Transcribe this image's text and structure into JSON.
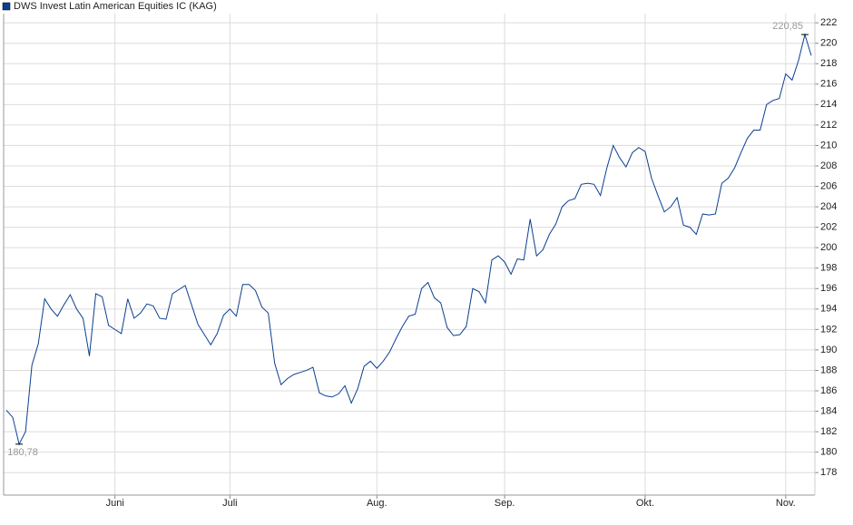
{
  "chart_data": {
    "type": "line",
    "categories": [
      null,
      null,
      null,
      null,
      null,
      null,
      null,
      null,
      null,
      null,
      null,
      null,
      null,
      null,
      null,
      null,
      null,
      "Juni",
      null,
      null,
      null,
      null,
      null,
      null,
      null,
      null,
      null,
      null,
      null,
      null,
      null,
      null,
      null,
      null,
      null,
      "Juli",
      null,
      null,
      null,
      null,
      null,
      null,
      null,
      null,
      null,
      null,
      null,
      null,
      null,
      null,
      null,
      null,
      null,
      null,
      null,
      null,
      null,
      null,
      "Aug.",
      null,
      null,
      null,
      null,
      null,
      null,
      null,
      null,
      null,
      null,
      null,
      null,
      null,
      null,
      null,
      null,
      null,
      null,
      null,
      "Sep.",
      null,
      null,
      null,
      null,
      null,
      null,
      null,
      null,
      null,
      null,
      null,
      null,
      null,
      null,
      null,
      null,
      null,
      null,
      null,
      null,
      null,
      "Okt.",
      null,
      null,
      null,
      null,
      null,
      null,
      null,
      null,
      null,
      null,
      null,
      null,
      null,
      null,
      null,
      null,
      null,
      null,
      null,
      null,
      null,
      "Nov.",
      null,
      null,
      null,
      null
    ],
    "series": [
      {
        "name": "DWS Invest Latin American Equities IC (KAG)",
        "color": "#0b3f91",
        "values": [
          184.1,
          183.4,
          180.78,
          182.0,
          188.5,
          190.6,
          195.0,
          194.0,
          193.3,
          194.4,
          195.4,
          194.0,
          193.1,
          189.4,
          195.5,
          195.2,
          192.4,
          192.0,
          191.6,
          195.0,
          193.1,
          193.6,
          194.5,
          194.3,
          193.1,
          193.0,
          195.5,
          195.9,
          196.3,
          194.4,
          192.5,
          191.5,
          190.5,
          191.6,
          193.4,
          194.0,
          193.3,
          196.4,
          196.4,
          195.8,
          194.2,
          193.6,
          188.7,
          186.6,
          187.2,
          187.6,
          187.8,
          188.0,
          188.3,
          185.8,
          185.5,
          185.4,
          185.7,
          186.5,
          184.8,
          186.2,
          188.4,
          188.9,
          188.2,
          188.9,
          189.8,
          191.1,
          192.3,
          193.3,
          193.5,
          196.0,
          196.6,
          195.1,
          194.6,
          192.2,
          191.4,
          191.5,
          192.3,
          196.0,
          195.7,
          194.6,
          198.8,
          199.2,
          198.6,
          197.4,
          198.9,
          198.8,
          202.8,
          199.2,
          199.8,
          201.3,
          202.3,
          204.0,
          204.6,
          204.8,
          206.2,
          206.3,
          206.2,
          205.1,
          207.8,
          210.0,
          208.8,
          207.9,
          209.3,
          209.8,
          209.4,
          206.8,
          205.1,
          203.5,
          204.0,
          204.9,
          202.2,
          202.0,
          201.3,
          203.3,
          203.2,
          203.3,
          206.3,
          206.8,
          207.8,
          209.3,
          210.7,
          211.5,
          211.5,
          214.0,
          214.4,
          214.6,
          217.0,
          216.4,
          218.3,
          220.85,
          218.8
        ],
        "value_labels": [
          null,
          null,
          "180,78",
          null,
          null,
          null,
          null,
          null,
          null,
          null,
          null,
          null,
          null,
          null,
          null,
          null,
          null,
          null,
          null,
          null,
          null,
          null,
          null,
          null,
          null,
          null,
          null,
          null,
          null,
          null,
          null,
          null,
          null,
          null,
          null,
          null,
          null,
          null,
          null,
          null,
          null,
          null,
          null,
          null,
          null,
          null,
          null,
          null,
          null,
          null,
          null,
          null,
          null,
          null,
          null,
          null,
          null,
          null,
          null,
          null,
          null,
          null,
          null,
          null,
          null,
          null,
          null,
          null,
          null,
          null,
          null,
          null,
          null,
          null,
          null,
          null,
          null,
          null,
          null,
          null,
          null,
          null,
          null,
          null,
          null,
          null,
          null,
          null,
          null,
          null,
          null,
          null,
          null,
          null,
          null,
          null,
          null,
          null,
          null,
          null,
          null,
          null,
          null,
          null,
          null,
          null,
          null,
          null,
          null,
          null,
          null,
          null,
          null,
          null,
          null,
          null,
          null,
          null,
          null,
          null,
          null,
          null,
          null,
          null,
          null,
          "220,85",
          null
        ]
      }
    ],
    "ylim": [
      175.8,
      222.9
    ],
    "yticks": [
      178,
      180,
      182,
      184,
      186,
      188,
      190,
      192,
      194,
      196,
      198,
      200,
      202,
      204,
      206,
      208,
      210,
      212,
      214,
      216,
      218,
      220,
      222
    ],
    "grid": true
  }
}
